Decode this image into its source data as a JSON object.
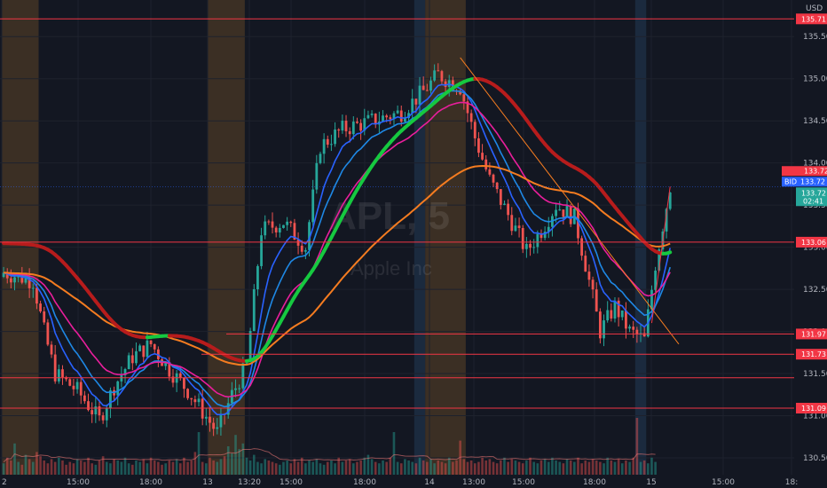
{
  "currency": "USD",
  "watermark": {
    "symbol": "APL, 5",
    "name": "Apple Inc"
  },
  "colors": {
    "bg": "#131722",
    "grid": "#1e222d",
    "up": "#26a69a",
    "down": "#ef5350",
    "level": "#f23645",
    "session_orange": "#3b2f24",
    "session_blue": "#1b2a3e",
    "box": "#5b2a6b",
    "ema_fast": "#2962ff",
    "ema_mid": "#1e88e5",
    "ema_slow": "#e91e9c",
    "ema_long": "#f57c20",
    "wave_up": "#16c940",
    "wave_down": "#b71c1c"
  },
  "badges": {
    "bid": {
      "label": "BID",
      "value": "133.72"
    },
    "ask_value": "133.72",
    "last": "133.72",
    "countdown": "02:41"
  },
  "chart_data": {
    "type": "candlestick",
    "ylim": [
      130.3,
      135.85
    ],
    "y_ticks": [
      130.5,
      131.0,
      131.5,
      132.0,
      132.5,
      133.0,
      133.5,
      134.0,
      134.5,
      135.0,
      135.5
    ],
    "x_ticks": [
      "2",
      "15:00",
      "18:00",
      "13",
      "13:20",
      "15:00",
      "18:00",
      "14",
      "13:00",
      "15:00",
      "18:00",
      "15",
      "15:00",
      "18:"
    ],
    "levels": [
      {
        "label": "135.71",
        "value": 135.71
      },
      {
        "label": "133.06",
        "value": 133.06
      },
      {
        "label": "131.97",
        "value": 131.97
      },
      {
        "label": "131.73",
        "value": 131.73
      },
      {
        "label": "131.09",
        "value": 131.09
      }
    ],
    "extra_line": 131.45,
    "box": {
      "from_bar": 0,
      "to_bar": 104,
      "top": 133.15,
      "bottom": 131.45
    },
    "sessions": [
      {
        "from": 0,
        "to": 10,
        "kind": "orange"
      },
      {
        "from": 56,
        "to": 66,
        "kind": "orange"
      },
      {
        "from": 112,
        "to": 115,
        "kind": "blue"
      },
      {
        "from": 115,
        "to": 126,
        "kind": "orange"
      },
      {
        "from": 172,
        "to": 175,
        "kind": "blue"
      }
    ],
    "waypoints": [
      [
        0,
        132.7
      ],
      [
        8,
        132.6
      ],
      [
        11,
        132.0
      ],
      [
        14,
        131.5
      ],
      [
        20,
        131.3
      ],
      [
        26,
        130.95
      ],
      [
        30,
        131.35
      ],
      [
        35,
        131.7
      ],
      [
        40,
        131.85
      ],
      [
        45,
        131.55
      ],
      [
        50,
        131.3
      ],
      [
        54,
        131.05
      ],
      [
        58,
        130.8
      ],
      [
        62,
        131.25
      ],
      [
        66,
        131.6
      ],
      [
        70,
        133.2
      ],
      [
        76,
        133.3
      ],
      [
        82,
        133.0
      ],
      [
        86,
        134.2
      ],
      [
        92,
        134.4
      ],
      [
        100,
        134.5
      ],
      [
        108,
        134.6
      ],
      [
        114,
        134.85
      ],
      [
        118,
        135.05
      ],
      [
        124,
        134.9
      ],
      [
        128,
        134.3
      ],
      [
        132,
        133.8
      ],
      [
        138,
        133.3
      ],
      [
        142,
        132.95
      ],
      [
        146,
        133.2
      ],
      [
        150,
        133.5
      ],
      [
        155,
        133.35
      ],
      [
        158,
        132.8
      ],
      [
        162,
        132.0
      ],
      [
        166,
        132.3
      ],
      [
        170,
        132.0
      ],
      [
        174,
        131.9
      ],
      [
        177,
        132.8
      ],
      [
        181,
        133.72
      ]
    ],
    "volumes": [
      8,
      12,
      10,
      22,
      9,
      7,
      14,
      11,
      9,
      16,
      13,
      10,
      8,
      11,
      9,
      12,
      10,
      7,
      9,
      8,
      11,
      10,
      9,
      12,
      8,
      7,
      10,
      13,
      9,
      8,
      11,
      10,
      9,
      12,
      8,
      7,
      10,
      9,
      11,
      8,
      12,
      10,
      9,
      7,
      8,
      10,
      9,
      11,
      8,
      12,
      9,
      10,
      16,
      30,
      9,
      8,
      12,
      10,
      9,
      11,
      13,
      20,
      15,
      28,
      18,
      22,
      12,
      10,
      14,
      9,
      8,
      11,
      10,
      9,
      8,
      7,
      9,
      10,
      8,
      11,
      9,
      12,
      8,
      10,
      9,
      11,
      8,
      7,
      9,
      10,
      8,
      12,
      9,
      10,
      11,
      8,
      9,
      10,
      12,
      14,
      11,
      9,
      8,
      10,
      9,
      12,
      30,
      9,
      8,
      11,
      10,
      9,
      8,
      12,
      10,
      9,
      11,
      8,
      10,
      9,
      8,
      12,
      9,
      10,
      24,
      11,
      9,
      10,
      8,
      9,
      12,
      10,
      11,
      9,
      8,
      10,
      12,
      9,
      11,
      10,
      9,
      8,
      10,
      12,
      9,
      8,
      10,
      11,
      9,
      12,
      10,
      9,
      8,
      11,
      10,
      9,
      12,
      8,
      10,
      9,
      11,
      10,
      9,
      8,
      12,
      10,
      9,
      11,
      8,
      10,
      9,
      12,
      40,
      9,
      10,
      8,
      12,
      9
    ]
  }
}
